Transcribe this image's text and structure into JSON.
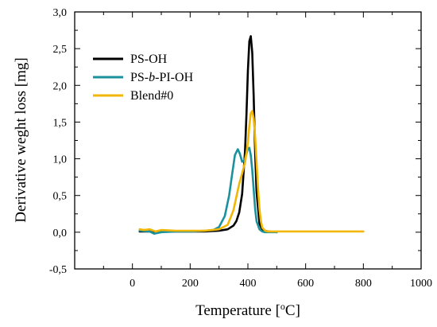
{
  "chart_data": {
    "type": "line",
    "xlabel_main": "Temperature [",
    "xlabel_sup": "o",
    "xlabel_end": "C]",
    "ylabel": "Derivative weght loss [mg]",
    "xlim": [
      -200,
      1000
    ],
    "ylim": [
      -0.5,
      3.0
    ],
    "x_ticks": [
      0,
      200,
      400,
      600,
      800,
      1000
    ],
    "x_tick_labels": [
      "0",
      "200",
      "400",
      "600",
      "800",
      "1000"
    ],
    "y_ticks": [
      -0.5,
      0.0,
      0.5,
      1.0,
      1.5,
      2.0,
      2.5,
      3.0
    ],
    "y_tick_labels": [
      "-0,5",
      "0,0",
      "0,5",
      "1,0",
      "1,5",
      "2,0",
      "2,5",
      "3,0"
    ],
    "grid": false,
    "legend_position": "top-left",
    "series": [
      {
        "name": "PS-OH",
        "color": "#000000",
        "x": [
          25,
          60,
          100,
          150,
          200,
          250,
          300,
          330,
          350,
          360,
          370,
          380,
          390,
          395,
          400,
          405,
          410,
          415,
          420,
          425,
          430,
          440,
          450,
          470,
          500
        ],
        "y": [
          0.01,
          0.01,
          0.01,
          0.01,
          0.01,
          0.01,
          0.02,
          0.04,
          0.09,
          0.15,
          0.27,
          0.52,
          1.1,
          1.6,
          2.2,
          2.6,
          2.67,
          2.45,
          1.85,
          1.1,
          0.55,
          0.12,
          0.03,
          0.01,
          0.0
        ]
      },
      {
        "name": "PS-b-PI-OH",
        "color": "#1a919d",
        "x": [
          25,
          60,
          75,
          100,
          150,
          200,
          250,
          280,
          300,
          320,
          335,
          345,
          355,
          365,
          372,
          380,
          388,
          395,
          400,
          405,
          410,
          415,
          420,
          425,
          430,
          440,
          450,
          460,
          470,
          500
        ],
        "y": [
          0.02,
          0.01,
          -0.02,
          0.0,
          0.01,
          0.01,
          0.02,
          0.03,
          0.07,
          0.22,
          0.5,
          0.78,
          1.05,
          1.13,
          1.07,
          0.96,
          0.98,
          1.07,
          1.14,
          1.15,
          1.05,
          0.85,
          0.58,
          0.32,
          0.15,
          0.04,
          0.01,
          0.0,
          0.0,
          0.0
        ]
      },
      {
        "name": "Blend#0",
        "color": "#f2b705",
        "x": [
          25,
          40,
          60,
          80,
          100,
          150,
          200,
          250,
          300,
          330,
          350,
          360,
          370,
          380,
          390,
          400,
          405,
          410,
          415,
          420,
          425,
          430,
          435,
          440,
          445,
          450,
          460,
          470,
          500,
          600,
          700,
          800
        ],
        "y": [
          0.04,
          0.03,
          0.04,
          0.01,
          0.03,
          0.02,
          0.02,
          0.02,
          0.04,
          0.1,
          0.3,
          0.48,
          0.66,
          0.8,
          0.95,
          1.22,
          1.45,
          1.62,
          1.65,
          1.55,
          1.3,
          0.95,
          0.6,
          0.32,
          0.15,
          0.06,
          0.02,
          0.01,
          0.01,
          0.01,
          0.01,
          0.01
        ]
      }
    ]
  }
}
